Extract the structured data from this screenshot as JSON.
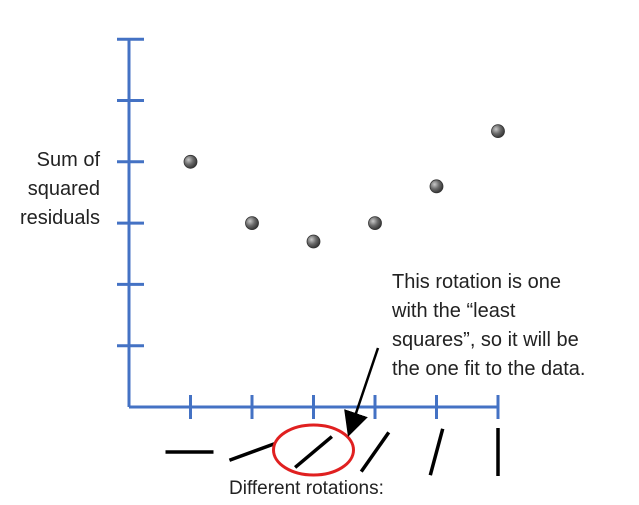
{
  "chart_data": {
    "type": "scatter",
    "ylabel_lines": [
      "Sum of",
      "squared",
      "residuals"
    ],
    "xlabel": "Different rotations:",
    "annotation_lines": [
      "This rotation is one",
      "with the “least",
      "squares”, so it will be",
      "the one fit to the data."
    ],
    "x": [
      1,
      2,
      3,
      4,
      5,
      6
    ],
    "y": [
      4,
      3,
      2.7,
      3,
      3.6,
      4.5
    ],
    "xlim": [
      0,
      6
    ],
    "ylim": [
      0,
      6
    ],
    "y_ticks": [
      1,
      2,
      3,
      4,
      5,
      6
    ],
    "x_ticks": [
      1,
      2,
      3,
      4,
      5,
      6
    ],
    "highlight_index": 2,
    "rotation_angles_deg": [
      0,
      20,
      40,
      55,
      75,
      90
    ],
    "grid": false
  },
  "colors": {
    "axis": "#4472C4",
    "point": "#555555",
    "highlight": "#E02020",
    "text": "#222222"
  }
}
